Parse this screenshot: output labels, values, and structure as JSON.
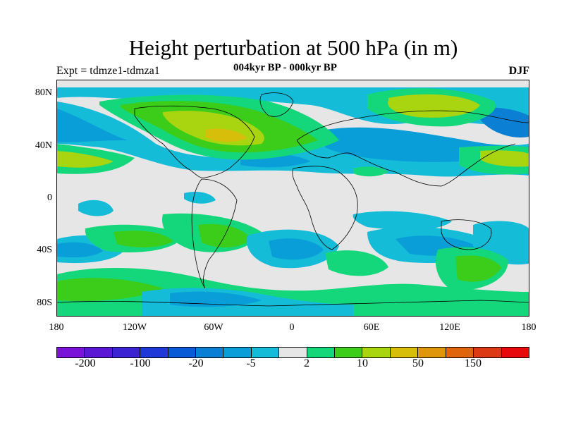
{
  "title": "Height perturbation at 500 hPa (in m)",
  "left_label": "Expt = tdmze1-tdmza1",
  "center_label": "004kyr BP - 000kyr BP",
  "right_label": "DJF",
  "y_ticks": [
    "80N",
    "40N",
    "0",
    "40S",
    "80S"
  ],
  "x_ticks": [
    "180",
    "120W",
    "60W",
    "0",
    "60E",
    "120E",
    "180"
  ],
  "colorbar": {
    "colors": [
      "#7a12d8",
      "#5a18d4",
      "#3b22d2",
      "#1f38d8",
      "#0a5ad8",
      "#0a7fd4",
      "#0a9ed8",
      "#14bcd8",
      "#e6e6e6",
      "#14d67a",
      "#3ccc1a",
      "#a8d410",
      "#d6be0a",
      "#e0960a",
      "#e0640a",
      "#dc3a14",
      "#e80a0a"
    ],
    "labels": [
      "-200",
      "-100",
      "-20",
      "-5",
      "2",
      "10",
      "50",
      "150"
    ]
  },
  "palette": {
    "background": "#e6e6e6",
    "neg_light": "#14bcd8",
    "neg_mid": "#0a9ed8",
    "neg_strong": "#0a7fd4",
    "neg_stronger": "#0a5ad8",
    "pos_light": "#14d67a",
    "pos_mid": "#3ccc1a",
    "pos_strong": "#a8d410",
    "pos_stronger": "#d6be0a"
  }
}
